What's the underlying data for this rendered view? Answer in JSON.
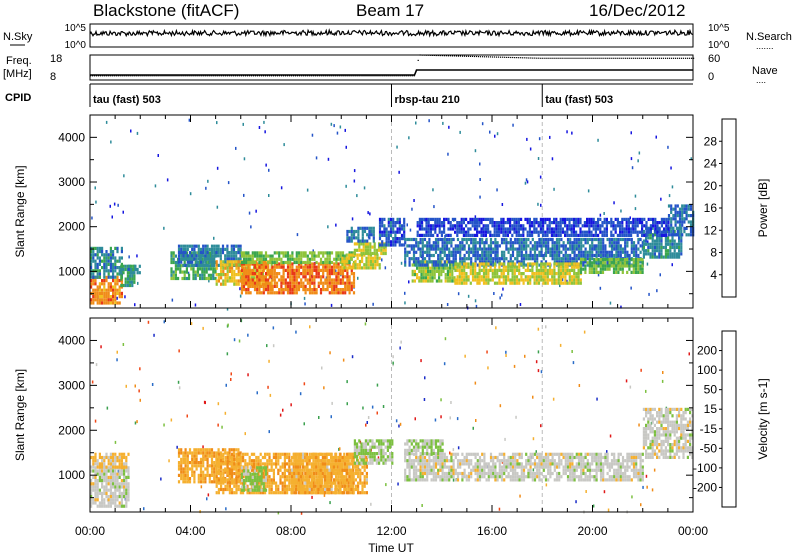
{
  "header": {
    "title": "Blackstone (fitACF)",
    "beam": "Beam 17",
    "date": "16/Dec/2012"
  },
  "labels": {
    "nsky": "N.Sky",
    "nsky_ticks": [
      "10^5",
      "10^0"
    ],
    "nsearch": "N.Search",
    "nsearch_ticks": [
      "10^5",
      "10^0"
    ],
    "freq_line1": "Freq.",
    "freq_line2": "[MHz]",
    "freq_ticks": [
      "18",
      "8"
    ],
    "nave": "Nave",
    "nave_ticks": [
      "60",
      "0"
    ],
    "cpid": "CPID"
  },
  "colors": {
    "grid_dash": "#bbbbbb",
    "trace": "#000000"
  },
  "chart_data": [
    {
      "type": "line",
      "name": "noise-panel",
      "series": [
        {
          "name": "N.Sky",
          "x": [
            "00:00",
            "02:00",
            "04:00",
            "06:00",
            "08:00",
            "10:00",
            "12:00",
            "14:00",
            "16:00",
            "18:00",
            "20:00",
            "22:00",
            "24:00"
          ],
          "values": [
            1000,
            900,
            1100,
            1000,
            1200,
            1300,
            1100,
            1000,
            1000,
            1100,
            1000,
            1200,
            1300
          ]
        }
      ],
      "ylabel": "N.Sky",
      "ylabel_right": "N.Search",
      "yscale": "log"
    },
    {
      "type": "line",
      "name": "frequency-nave-panel",
      "series": [
        {
          "name": "Freq.",
          "x": [
            "00:00",
            "12:55",
            "13:00",
            "18:00",
            "24:00"
          ],
          "values": [
            10,
            10,
            12,
            12,
            12
          ]
        },
        {
          "name": "Nave",
          "x": [
            "00:00",
            "12:55",
            "13:05",
            "18:00",
            "24:00"
          ],
          "values": [
            10,
            10,
            60,
            52,
            52
          ]
        }
      ],
      "ylabel": "Freq. [MHz]",
      "ylabel_right": "Nave",
      "ylim_left": [
        8,
        18
      ],
      "ylim_right": [
        0,
        60
      ]
    },
    {
      "type": "table",
      "name": "cpid-segments",
      "columns": [
        "label",
        "start",
        "end"
      ],
      "rows": [
        [
          "tau (fast) 503",
          "00:00",
          "12:00"
        ],
        [
          "rbsp-tau 210",
          "12:00",
          "18:00"
        ],
        [
          "tau (fast) 503",
          "18:00",
          "24:00"
        ]
      ]
    },
    {
      "type": "heatmap",
      "name": "power-panel",
      "ylabel": "Slant Range [km]",
      "ylim": [
        180,
        4500
      ],
      "yticks": [
        1000,
        2000,
        3000,
        4000
      ],
      "colorbar": {
        "label": "Power [dB]",
        "range": [
          0,
          32
        ],
        "ticks": [
          4,
          8,
          12,
          16,
          20,
          24,
          28
        ],
        "colors": [
          "#1616e0",
          "#2454c8",
          "#2e8c9a",
          "#3aa64e",
          "#8fc43a",
          "#f0c020",
          "#f08c18",
          "#e83818"
        ]
      },
      "regions": [
        {
          "x": [
            0.0,
            1.3
          ],
          "range": [
            300,
            900
          ],
          "value": 26
        },
        {
          "x": [
            0.0,
            1.3
          ],
          "range": [
            900,
            1550
          ],
          "value": 10
        },
        {
          "x": [
            1.2,
            1.8
          ],
          "range": [
            700,
            1150
          ],
          "value": 12
        },
        {
          "x": [
            1.5,
            2.0
          ],
          "range": [
            950,
            1150
          ],
          "value": 10
        },
        {
          "x": [
            3.2,
            5.0
          ],
          "range": [
            850,
            1450
          ],
          "value": 14
        },
        {
          "x": [
            3.5,
            6.0
          ],
          "range": [
            1150,
            1600
          ],
          "value": 9
        },
        {
          "x": [
            5.0,
            7.2
          ],
          "range": [
            700,
            1250
          ],
          "value": 22
        },
        {
          "x": [
            6.0,
            10.5
          ],
          "range": [
            500,
            1200
          ],
          "value": 27
        },
        {
          "x": [
            6.0,
            10.5
          ],
          "range": [
            1200,
            1450
          ],
          "value": 17
        },
        {
          "x": [
            10.0,
            11.5
          ],
          "range": [
            1100,
            1400
          ],
          "value": 21
        },
        {
          "x": [
            10.5,
            11.8
          ],
          "range": [
            1400,
            1650
          ],
          "value": 19
        },
        {
          "x": [
            10.2,
            11.3
          ],
          "range": [
            1650,
            2000
          ],
          "value": 8
        },
        {
          "x": [
            11.5,
            12.5
          ],
          "range": [
            1600,
            2200
          ],
          "value": 6
        },
        {
          "x": [
            12.8,
            14.5
          ],
          "range": [
            800,
            1250
          ],
          "value": 18
        },
        {
          "x": [
            12.5,
            22.0
          ],
          "range": [
            1150,
            1750
          ],
          "value": 8
        },
        {
          "x": [
            14.5,
            19.5
          ],
          "range": [
            750,
            1200
          ],
          "value": 20
        },
        {
          "x": [
            19.5,
            22.0
          ],
          "range": [
            1000,
            1300
          ],
          "value": 16
        },
        {
          "x": [
            22.0,
            23.5
          ],
          "range": [
            1300,
            2000
          ],
          "value": 10
        },
        {
          "x": [
            23.0,
            24.0
          ],
          "range": [
            1800,
            2500
          ],
          "value": 7
        },
        {
          "x": [
            13.0,
            23.0
          ],
          "range": [
            1800,
            2200
          ],
          "value": 5
        }
      ]
    },
    {
      "type": "heatmap",
      "name": "velocity-panel",
      "ylabel": "Slant Range [km]",
      "ylim": [
        180,
        4500
      ],
      "yticks": [
        1000,
        2000,
        3000,
        4000
      ],
      "colorbar": {
        "label": "Velocity [m s-1]",
        "range": [
          -250,
          250
        ],
        "ticks": [
          200,
          100,
          50,
          15,
          -15,
          -50,
          -100,
          -200
        ],
        "colors": [
          "#e01818",
          "#f04818",
          "#f08c18",
          "#f5b030",
          "#c8c8c4",
          "#7cc040",
          "#3aa04e",
          "#2a6cc8",
          "#1a2cc8"
        ]
      },
      "regions": [
        {
          "x": [
            0.0,
            1.5
          ],
          "range": [
            300,
            1200
          ],
          "value": 0
        },
        {
          "x": [
            0.0,
            1.5
          ],
          "range": [
            1200,
            1500
          ],
          "value": -40
        },
        {
          "x": [
            3.5,
            6.0
          ],
          "range": [
            850,
            1600
          ],
          "value": -70
        },
        {
          "x": [
            5.0,
            10.5
          ],
          "range": [
            600,
            1500
          ],
          "value": -70
        },
        {
          "x": [
            6.0,
            7.0
          ],
          "range": [
            700,
            1200
          ],
          "value": 40
        },
        {
          "x": [
            8.0,
            11.0
          ],
          "range": [
            600,
            1500
          ],
          "value": -60
        },
        {
          "x": [
            10.5,
            12.0
          ],
          "range": [
            1300,
            1800
          ],
          "value": 30
        },
        {
          "x": [
            12.5,
            22.0
          ],
          "range": [
            900,
            1500
          ],
          "value": 0
        },
        {
          "x": [
            12.5,
            14.0
          ],
          "range": [
            1500,
            1800
          ],
          "value": 30
        },
        {
          "x": [
            22.0,
            24.0
          ],
          "range": [
            1400,
            2500
          ],
          "value": 0
        }
      ]
    }
  ],
  "xaxis": {
    "ticks": [
      "00:00",
      "04:00",
      "08:00",
      "12:00",
      "16:00",
      "20:00",
      "00:00"
    ],
    "label": "Time UT"
  }
}
